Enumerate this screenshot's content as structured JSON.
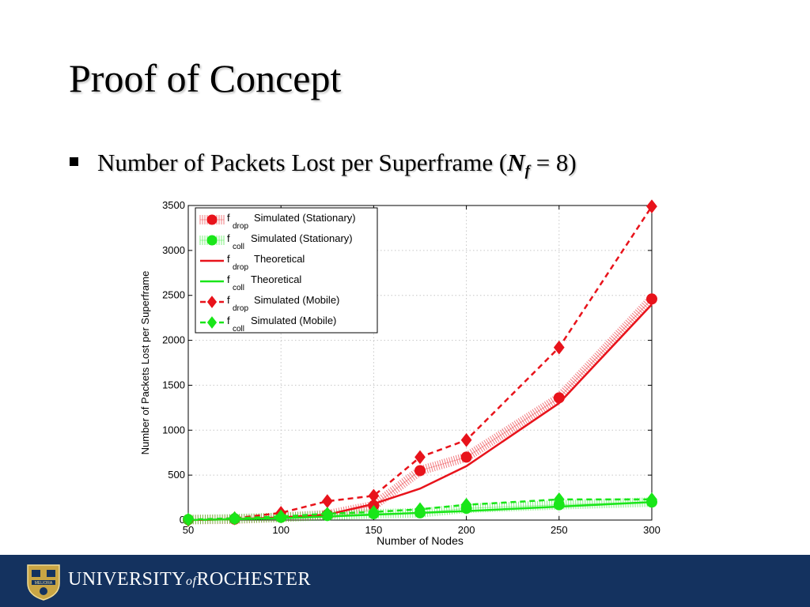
{
  "slide": {
    "title": "Proof of Concept",
    "bullet": {
      "prefix": "Number of Packets Lost per Superframe (",
      "var": "N",
      "sub": "f",
      "suffix": " = 8)"
    }
  },
  "footer": {
    "word1": "UNIVERSITY",
    "word2": "of",
    "word3": "ROCHESTER",
    "seal_text": "MELIORA",
    "colors": {
      "bar": "#14325f",
      "seal": "#c9a544"
    }
  },
  "chart_data": {
    "type": "line",
    "xlabel": "Number of Nodes",
    "ylabel": "Number of Packets Lost per Superframe",
    "xlim": [
      50,
      300
    ],
    "ylim": [
      0,
      3500
    ],
    "xticks": [
      50,
      100,
      150,
      200,
      250,
      300
    ],
    "yticks": [
      0,
      500,
      1000,
      1500,
      2000,
      2500,
      3000,
      3500
    ],
    "grid": true,
    "legend_position": "top-left",
    "series": [
      {
        "name": "f_drop Simulated (Stationary)",
        "label_main": "f",
        "label_sub": "drop",
        "label_rest": "Simulated (Stationary)",
        "color": "#e8131b",
        "line": "hatched",
        "marker": "circle",
        "x": [
          50,
          75,
          100,
          125,
          150,
          175,
          200,
          250,
          300
        ],
        "y": [
          5,
          10,
          30,
          60,
          160,
          550,
          700,
          1360,
          2460
        ]
      },
      {
        "name": "f_coll Simulated (Stationary)",
        "label_main": "f",
        "label_sub": "coll",
        "label_rest": "Simulated (Stationary)",
        "color": "#19e619",
        "line": "hatched",
        "marker": "circle",
        "x": [
          50,
          75,
          100,
          125,
          150,
          175,
          200,
          250,
          300
        ],
        "y": [
          5,
          15,
          30,
          50,
          70,
          80,
          130,
          170,
          200
        ]
      },
      {
        "name": "f_drop Theoretical",
        "label_main": "f",
        "label_sub": "drop",
        "label_rest": "Theoretical",
        "color": "#e8131b",
        "line": "solid",
        "marker": "none",
        "x": [
          50,
          75,
          100,
          125,
          150,
          175,
          200,
          250,
          300
        ],
        "y": [
          0,
          10,
          30,
          60,
          180,
          350,
          600,
          1300,
          2400
        ]
      },
      {
        "name": "f_coll Theoretical",
        "label_main": "f",
        "label_sub": "coll",
        "label_rest": "Theoretical",
        "color": "#19e619",
        "line": "solid",
        "marker": "none",
        "x": [
          50,
          75,
          100,
          125,
          150,
          175,
          200,
          250,
          300
        ],
        "y": [
          0,
          10,
          20,
          40,
          60,
          80,
          100,
          150,
          200
        ]
      },
      {
        "name": "f_drop Simulated (Mobile)",
        "label_main": "f",
        "label_sub": "drop",
        "label_rest": "Simulated (Mobile)",
        "color": "#e8131b",
        "line": "dashed",
        "marker": "diamond",
        "x": [
          50,
          75,
          100,
          125,
          150,
          175,
          200,
          250,
          300
        ],
        "y": [
          0,
          20,
          80,
          210,
          270,
          700,
          890,
          1920,
          3490
        ]
      },
      {
        "name": "f_coll Simulated (Mobile)",
        "label_main": "f",
        "label_sub": "coll",
        "label_rest": "Simulated (Mobile)",
        "color": "#19e619",
        "line": "dashed",
        "marker": "diamond",
        "x": [
          50,
          75,
          100,
          125,
          150,
          175,
          200,
          250,
          300
        ],
        "y": [
          5,
          20,
          40,
          70,
          90,
          120,
          170,
          230,
          230
        ]
      }
    ]
  }
}
